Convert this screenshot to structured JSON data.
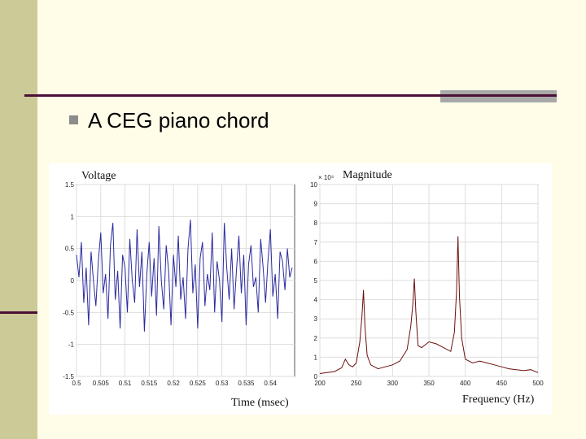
{
  "slide": {
    "bullet_text": "A CEG piano chord"
  },
  "colors": {
    "left_bar": "#ccca97",
    "rule": "#4c1036",
    "gray_block": "#a8a8a8",
    "voltage_line": "#2a2aa0",
    "magnitude_line": "#6b0f0f"
  },
  "chart_data": [
    {
      "type": "line",
      "title": "Voltage",
      "xlabel": "Time (msec)",
      "ylabel": "",
      "xlim": [
        0.5,
        0.545
      ],
      "ylim": [
        -1.5,
        1.5
      ],
      "x_ticks": [
        "0.5",
        "0.505",
        "0.51",
        "0.515",
        "0.52",
        "0.525",
        "0.53",
        "0.535",
        "0.54"
      ],
      "y_ticks": [
        "-1.5",
        "-1",
        "-0.5",
        "0",
        "0.5",
        "1",
        "1.5"
      ],
      "grid": true,
      "x": [
        0.5,
        0.5005,
        0.501,
        0.5015,
        0.502,
        0.5025,
        0.503,
        0.5035,
        0.504,
        0.5045,
        0.505,
        0.5055,
        0.506,
        0.5065,
        0.507,
        0.5075,
        0.508,
        0.5085,
        0.509,
        0.5095,
        0.51,
        0.5105,
        0.511,
        0.5115,
        0.512,
        0.5125,
        0.513,
        0.5135,
        0.514,
        0.5145,
        0.515,
        0.5155,
        0.516,
        0.5165,
        0.517,
        0.5175,
        0.518,
        0.5185,
        0.519,
        0.5195,
        0.52,
        0.5205,
        0.521,
        0.5215,
        0.522,
        0.5225,
        0.523,
        0.5235,
        0.524,
        0.5245,
        0.525,
        0.5255,
        0.526,
        0.5265,
        0.527,
        0.5275,
        0.528,
        0.5285,
        0.529,
        0.5295,
        0.53,
        0.5305,
        0.531,
        0.5315,
        0.532,
        0.5325,
        0.533,
        0.5335,
        0.534,
        0.5345,
        0.535,
        0.5355,
        0.536,
        0.5365,
        0.537,
        0.5375,
        0.538,
        0.5385,
        0.539,
        0.5395,
        0.54,
        0.5405,
        0.541,
        0.5415,
        0.542,
        0.5425,
        0.543,
        0.5435,
        0.544,
        0.5445
      ],
      "y": [
        0.4,
        0.05,
        0.6,
        -0.35,
        0.2,
        -0.7,
        0.45,
        0.0,
        -0.4,
        0.3,
        0.75,
        -0.2,
        0.1,
        -0.6,
        0.55,
        0.9,
        -0.3,
        0.15,
        -0.75,
        0.4,
        0.2,
        -0.5,
        0.65,
        0.0,
        -0.35,
        0.8,
        -0.1,
        0.45,
        -0.8,
        0.1,
        0.6,
        -0.25,
        0.35,
        -0.55,
        0.85,
        0.0,
        -0.45,
        0.55,
        0.15,
        -0.7,
        0.4,
        -0.1,
        0.7,
        -0.3,
        0.05,
        -0.6,
        0.5,
        0.95,
        -0.2,
        0.25,
        -0.75,
        0.35,
        0.6,
        -0.4,
        0.1,
        -0.15,
        0.75,
        -0.5,
        0.3,
        0.0,
        -0.65,
        0.9,
        0.2,
        -0.3,
        0.5,
        -0.45,
        0.15,
        0.7,
        -0.2,
        0.4,
        -0.7,
        0.25,
        0.55,
        -0.1,
        0.05,
        -0.5,
        0.65,
        0.2,
        -0.35,
        0.3,
        0.8,
        -0.25,
        0.1,
        -0.6,
        0.45,
        0.3,
        -0.15,
        0.5,
        0.05,
        0.2
      ]
    },
    {
      "type": "line",
      "title": "Magnitude",
      "xlabel": "Frequency (Hz)",
      "ylabel": "",
      "y_scale_label": "× 10⁴",
      "xlim": [
        200,
        500
      ],
      "ylim": [
        0,
        10
      ],
      "x_ticks": [
        "200",
        "250",
        "300",
        "350",
        "400",
        "450",
        "500"
      ],
      "y_ticks": [
        "0",
        "1",
        "2",
        "3",
        "4",
        "5",
        "6",
        "7",
        "8",
        "9",
        "10"
      ],
      "grid": true,
      "x": [
        200,
        210,
        220,
        230,
        235,
        240,
        245,
        250,
        255,
        258,
        260,
        262,
        265,
        270,
        280,
        290,
        300,
        310,
        320,
        325,
        328,
        330,
        332,
        335,
        340,
        350,
        360,
        370,
        380,
        385,
        388,
        390,
        392,
        395,
        400,
        410,
        420,
        430,
        440,
        450,
        460,
        470,
        480,
        490,
        500
      ],
      "y": [
        0.15,
        0.2,
        0.25,
        0.45,
        0.9,
        0.6,
        0.5,
        0.7,
        1.8,
        3.2,
        4.5,
        2.6,
        1.1,
        0.6,
        0.4,
        0.5,
        0.6,
        0.8,
        1.4,
        2.6,
        3.8,
        5.1,
        3.4,
        1.6,
        1.5,
        1.8,
        1.7,
        1.5,
        1.3,
        2.3,
        4.4,
        7.3,
        4.2,
        2.0,
        0.9,
        0.7,
        0.8,
        0.7,
        0.6,
        0.5,
        0.4,
        0.35,
        0.3,
        0.35,
        0.2
      ]
    }
  ]
}
